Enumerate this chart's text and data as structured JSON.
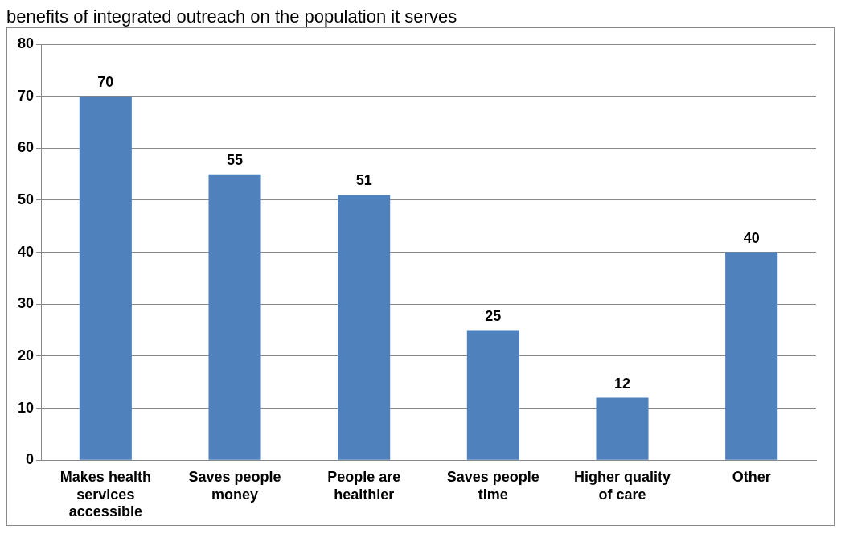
{
  "chart_data": {
    "type": "bar",
    "title": "benefits of integrated outreach on the population it serves",
    "categories": [
      "Makes health services accessible",
      "Saves people money",
      "People are healthier",
      "Saves people time",
      "Higher quality of care",
      "Other"
    ],
    "values": [
      70,
      55,
      51,
      25,
      12,
      40
    ],
    "color": "#4f81bd",
    "ylim": [
      0,
      80
    ],
    "yticks": [
      0,
      10,
      20,
      30,
      40,
      50,
      60,
      70,
      80
    ],
    "grid": "y",
    "data_labels": true
  }
}
